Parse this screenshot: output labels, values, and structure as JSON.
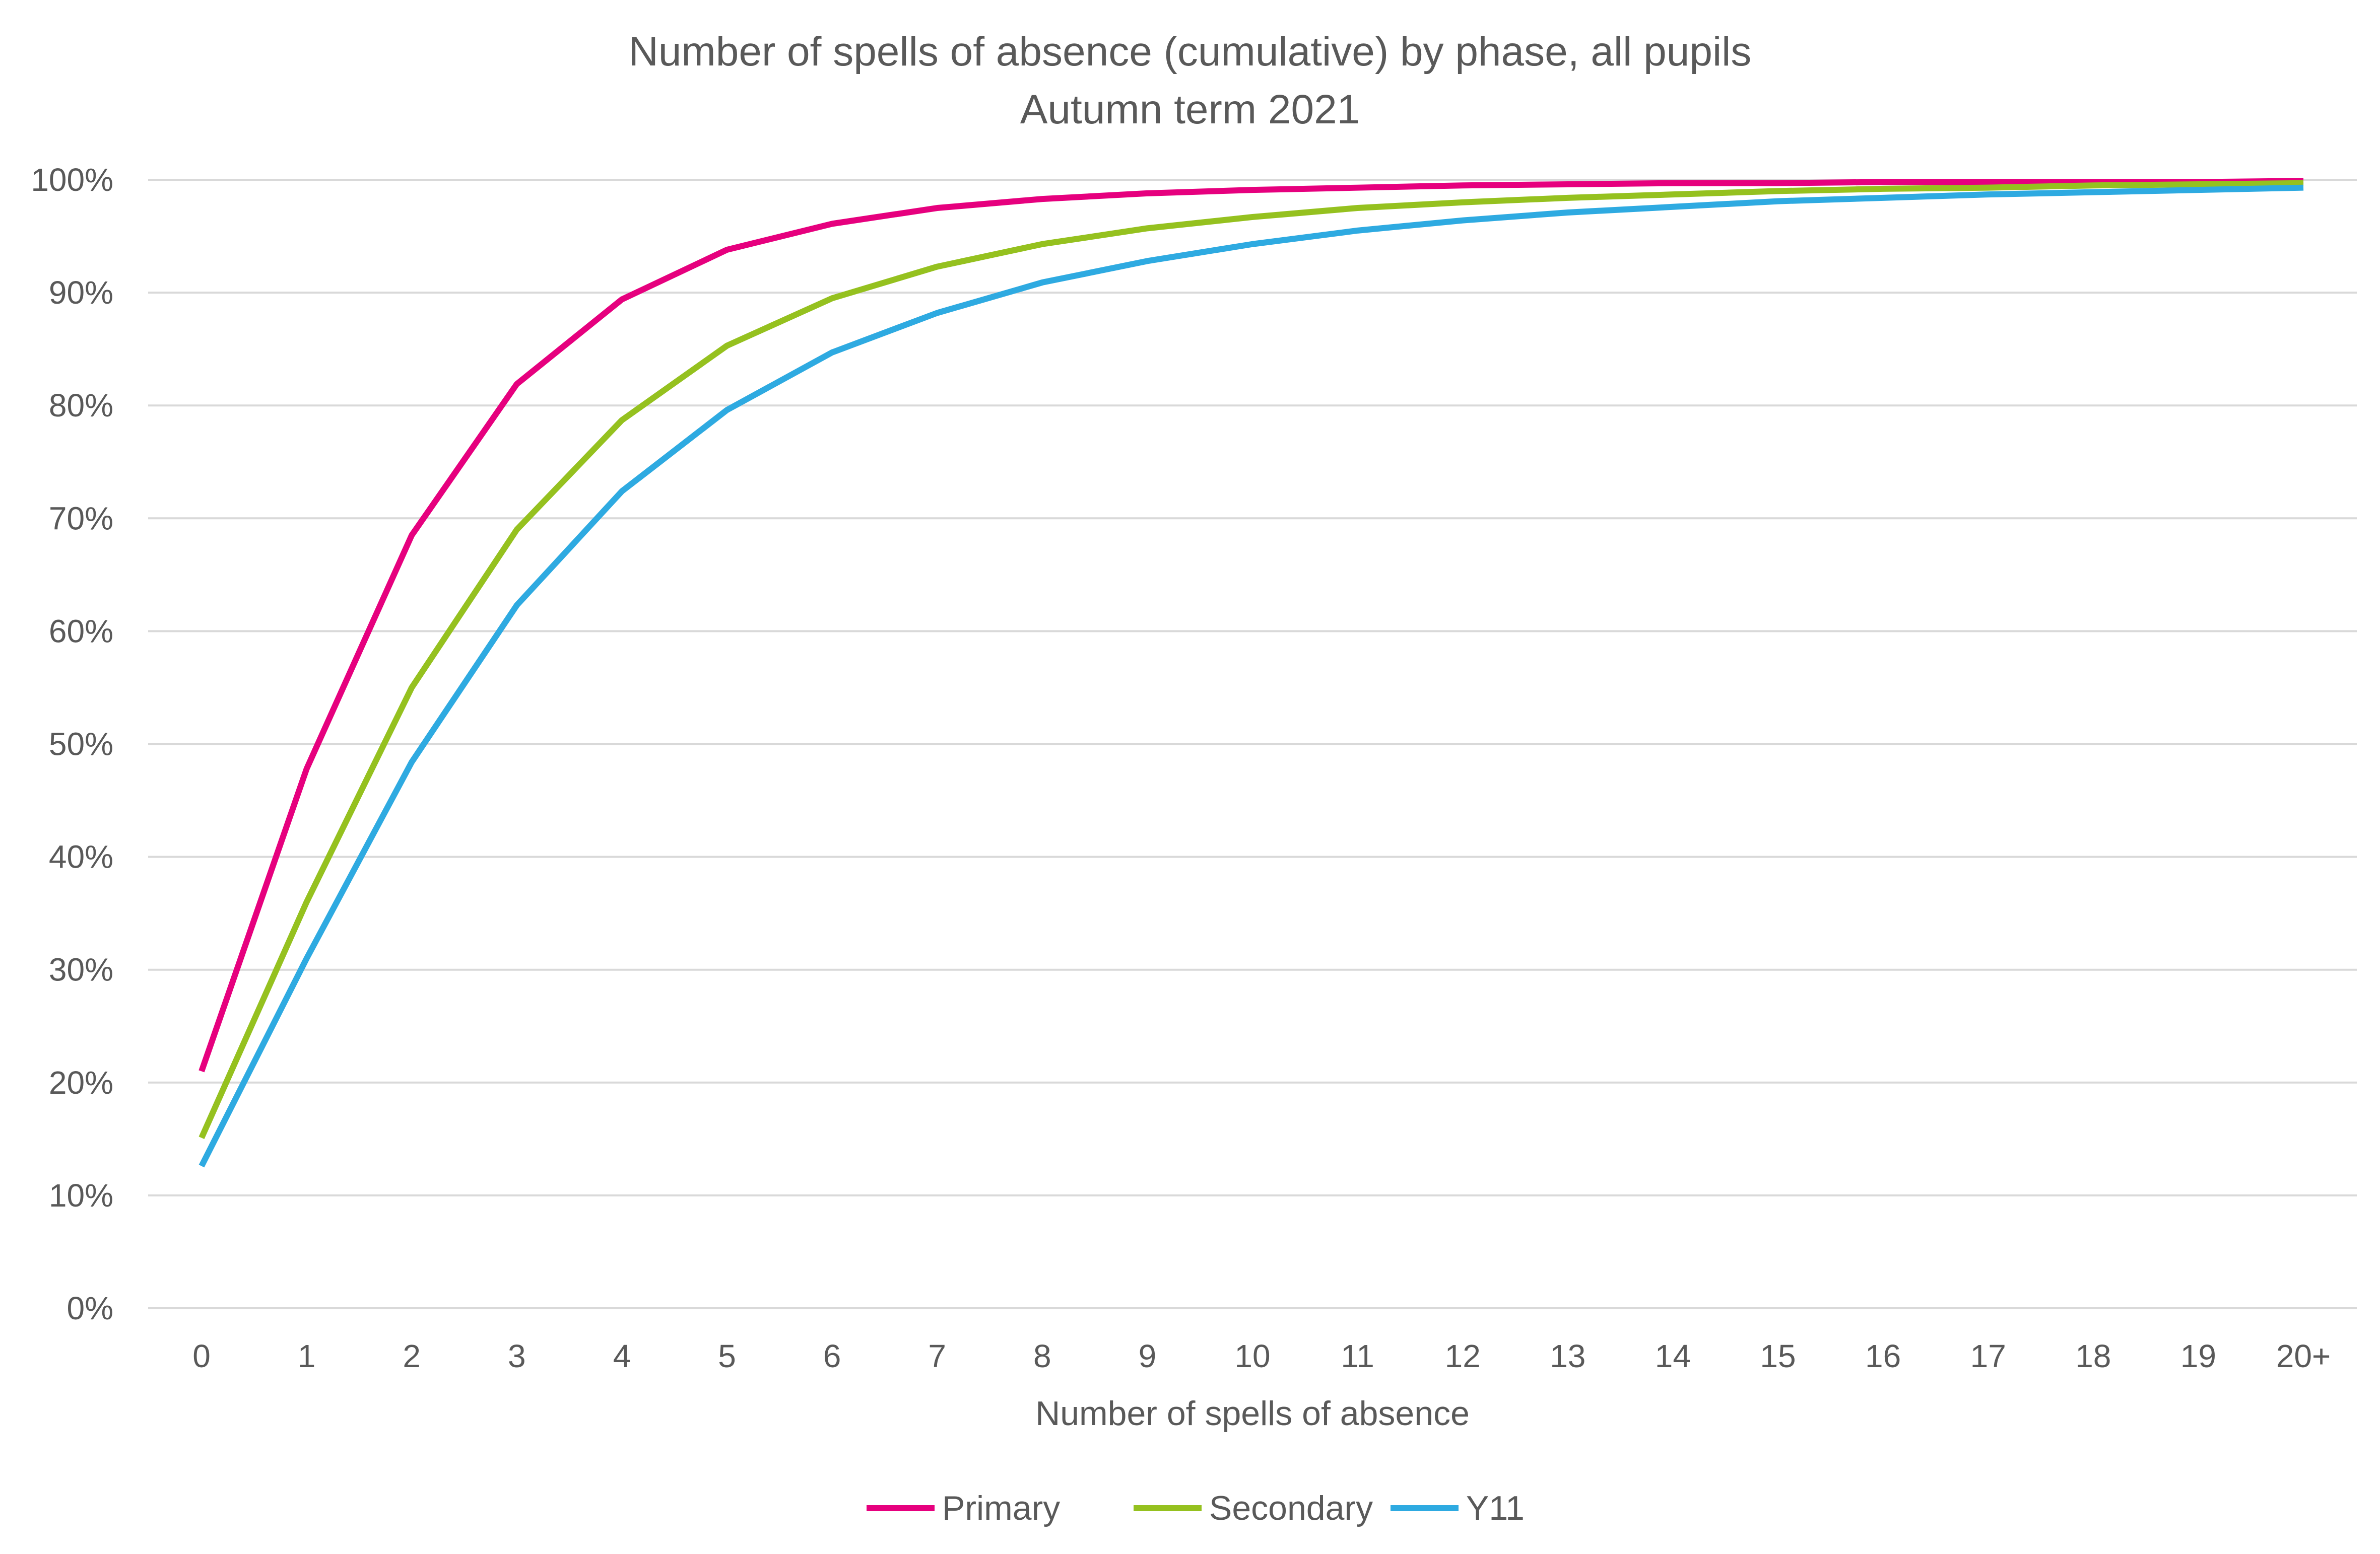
{
  "chart_data": {
    "type": "line",
    "title": "Number of spells of absence (cumulative) by phase, all pupils",
    "subtitle": "Autumn term 2021",
    "xlabel": "Number of spells of absence",
    "ylabel": "",
    "categories": [
      "0",
      "1",
      "2",
      "3",
      "4",
      "5",
      "6",
      "7",
      "8",
      "9",
      "10",
      "11",
      "12",
      "13",
      "14",
      "15",
      "16",
      "17",
      "18",
      "19",
      "20+"
    ],
    "ylim": [
      0,
      100
    ],
    "yticks": [
      "0%",
      "10%",
      "20%",
      "30%",
      "40%",
      "50%",
      "60%",
      "70%",
      "80%",
      "90%",
      "100%"
    ],
    "grid": true,
    "legend_position": "bottom",
    "series": [
      {
        "name": "Primary",
        "color": "#e6007e",
        "values": [
          21.0,
          47.8,
          68.5,
          81.9,
          89.4,
          93.8,
          96.1,
          97.5,
          98.3,
          98.8,
          99.1,
          99.3,
          99.5,
          99.6,
          99.7,
          99.7,
          99.8,
          99.8,
          99.8,
          99.8,
          99.9
        ]
      },
      {
        "name": "Secondary",
        "color": "#95c11f",
        "values": [
          15.1,
          36.0,
          55.0,
          69.0,
          78.7,
          85.3,
          89.5,
          92.3,
          94.3,
          95.7,
          96.7,
          97.5,
          98.0,
          98.4,
          98.7,
          99.0,
          99.2,
          99.3,
          99.5,
          99.6,
          99.7
        ]
      },
      {
        "name": "Y11",
        "color": "#2eaae1",
        "values": [
          12.6,
          31.0,
          48.4,
          62.3,
          72.4,
          79.6,
          84.7,
          88.2,
          90.9,
          92.8,
          94.3,
          95.5,
          96.4,
          97.1,
          97.6,
          98.1,
          98.4,
          98.7,
          98.9,
          99.1,
          99.3
        ]
      }
    ]
  }
}
